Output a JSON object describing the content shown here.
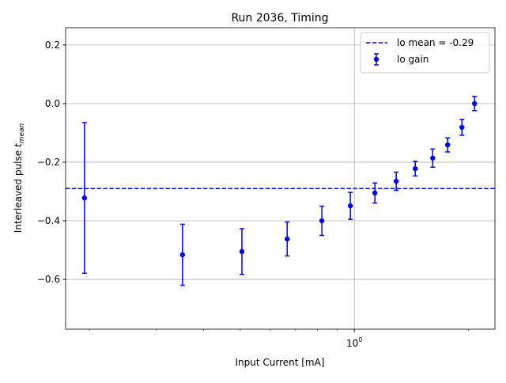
{
  "chart_data": {
    "type": "errorbar",
    "title": "Run 2036, Timing",
    "xlabel": "Input Current [mA]",
    "ylabel": "Interleaved pulse",
    "ylabel_var": "t",
    "ylabel_sub": "mean",
    "xscale": "log",
    "grid": true,
    "legend": "upper right",
    "xlim": [
      0.173,
      2.35
    ],
    "xticks": [
      {
        "value": 1,
        "label": "10",
        "exp": "0"
      }
    ],
    "xminorticks": [
      0.2,
      0.3,
      0.4,
      0.5,
      0.6,
      0.7,
      0.8,
      0.9,
      2
    ],
    "ylim": [
      -0.77,
      0.259
    ],
    "yticks": [
      0.2,
      {
        "value": 0,
        "label": "0.0"
      },
      {
        "value": -0.2,
        "label": "−0.2"
      },
      {
        "value": -0.4,
        "label": "−0.4"
      },
      {
        "value": -0.6,
        "label": "−0.6"
      }
    ],
    "mean_line": {
      "value": -0.29,
      "label": "lo mean = -0.29",
      "color": "#0000ff"
    },
    "series": [
      {
        "name": "lo gain",
        "color": "#0000ff",
        "x": [
          0.194,
          0.352,
          0.505,
          0.665,
          0.821,
          0.976,
          1.133,
          1.29,
          1.448,
          1.61,
          1.763,
          1.923,
          2.076
        ],
        "values": [
          -0.322,
          -0.516,
          -0.505,
          -0.462,
          -0.4,
          -0.349,
          -0.305,
          -0.265,
          -0.222,
          -0.186,
          -0.141,
          -0.081,
          0.0
        ],
        "errors": [
          0.257,
          0.104,
          0.078,
          0.058,
          0.05,
          0.046,
          0.034,
          0.031,
          0.025,
          0.031,
          0.024,
          0.027,
          0.024
        ]
      }
    ]
  }
}
